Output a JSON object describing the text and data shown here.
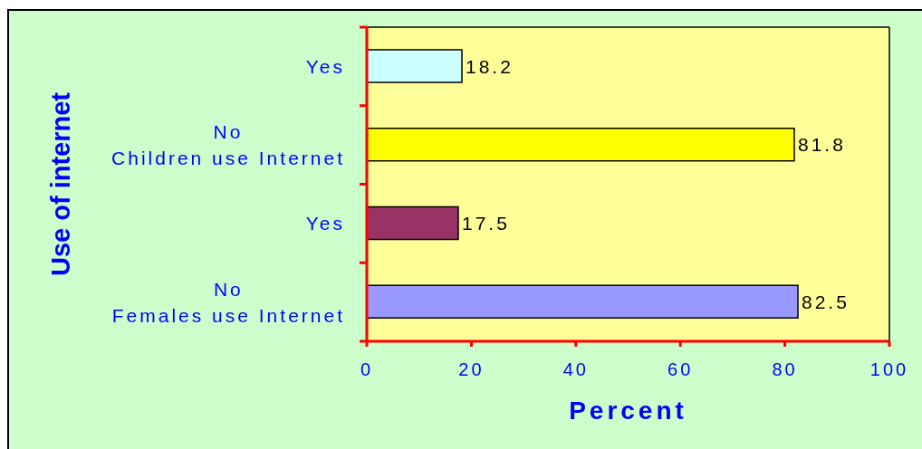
{
  "chart_data": {
    "type": "bar",
    "orientation": "horizontal",
    "categories": [
      "Yes",
      "No\nChildren use Internet",
      "Yes",
      "No\nFemales use Internet"
    ],
    "values": [
      18.2,
      81.8,
      17.5,
      82.5
    ],
    "colors": [
      "#ccffff",
      "#ffff00",
      "#993366",
      "#9999ff"
    ],
    "xlabel": "Percent",
    "ylabel": "Use of internet",
    "xlim": [
      0,
      100
    ],
    "xticks": [
      0,
      20,
      40,
      60,
      80,
      100
    ],
    "data_labels": true
  }
}
